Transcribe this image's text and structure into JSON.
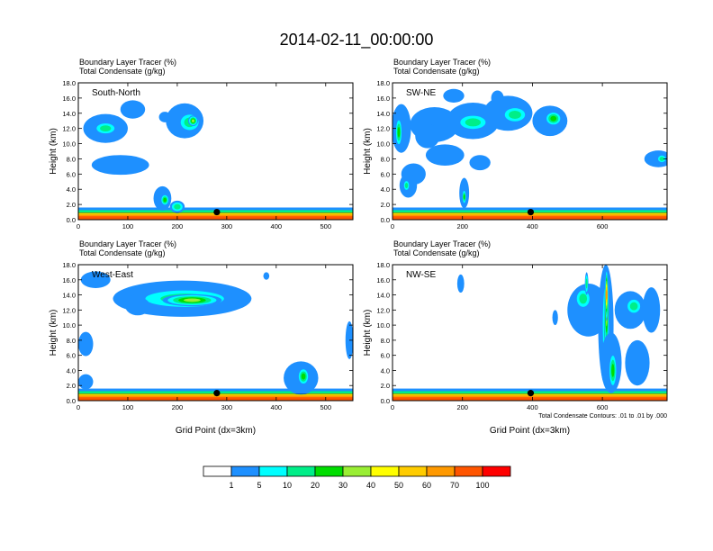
{
  "page_title": "2014-02-11_00:00:00",
  "colorbar": {
    "colors": [
      "#ffffff",
      "#1e90ff",
      "#00ffff",
      "#00ee88",
      "#00dd00",
      "#99ee33",
      "#ffff00",
      "#ffcc00",
      "#ff9900",
      "#ff5500",
      "#ff0000"
    ],
    "labels": [
      "1",
      "5",
      "10",
      "20",
      "30",
      "40",
      "50",
      "60",
      "70",
      "100"
    ]
  },
  "chart_data": [
    {
      "type": "heatmap",
      "name": "south-north",
      "label": "South-North",
      "title_lines": [
        "Boundary Layer Tracer   (%)",
        "Total Condensate   (g/kg)"
      ],
      "ylabel": "Height (km)",
      "xlabel": "",
      "xlim": [
        0,
        555
      ],
      "ylim": [
        0,
        18
      ],
      "xticks": [
        0,
        100,
        200,
        300,
        400,
        500
      ],
      "xtick_labels": [
        "0",
        "100",
        "200",
        "300",
        "400",
        "500"
      ],
      "yticks": [
        0,
        2,
        4,
        6,
        8,
        10,
        12,
        14,
        16,
        18
      ],
      "ytick_labels": [
        "0.0",
        "2.0",
        "4.0",
        "6.0",
        "8.0",
        "10.0",
        "12.0",
        "14.0",
        "16.0",
        "18.0"
      ],
      "marker": {
        "x": 280,
        "y": 1.0
      },
      "features": [
        {
          "x": 55,
          "y": 12.0,
          "rx": 45,
          "ry": 1.9,
          "level": 1
        },
        {
          "x": 55,
          "y": 12.0,
          "rx": 25,
          "ry": 0.9,
          "level": 3
        },
        {
          "x": 110,
          "y": 14.5,
          "rx": 25,
          "ry": 1.2,
          "level": 1
        },
        {
          "x": 175,
          "y": 13.5,
          "rx": 12,
          "ry": 0.7,
          "level": 1
        },
        {
          "x": 215,
          "y": 13.0,
          "rx": 38,
          "ry": 2.3,
          "level": 1
        },
        {
          "x": 225,
          "y": 12.8,
          "rx": 25,
          "ry": 1.4,
          "level": 3
        },
        {
          "x": 232,
          "y": 13.0,
          "rx": 10,
          "ry": 0.7,
          "level": 5
        },
        {
          "x": 85,
          "y": 7.2,
          "rx": 58,
          "ry": 1.3,
          "level": 1
        },
        {
          "x": 170,
          "y": 2.8,
          "rx": 18,
          "ry": 1.6,
          "level": 1
        },
        {
          "x": 175,
          "y": 2.6,
          "rx": 9,
          "ry": 0.8,
          "level": 4
        },
        {
          "x": 200,
          "y": 1.7,
          "rx": 15,
          "ry": 0.8,
          "level": 3
        }
      ]
    },
    {
      "type": "heatmap",
      "name": "sw-ne",
      "label": "SW-NE",
      "title_lines": [
        "Boundary Layer Tracer   (%)",
        "Total Condensate   (g/kg)"
      ],
      "ylabel": "Height (km)",
      "xlabel": "",
      "xlim": [
        0,
        785
      ],
      "ylim": [
        0,
        18
      ],
      "xticks": [
        0,
        200,
        400,
        600
      ],
      "xtick_labels": [
        "0",
        "200",
        "400",
        "600"
      ],
      "yticks": [
        0,
        2,
        4,
        6,
        8,
        10,
        12,
        14,
        16,
        18
      ],
      "ytick_labels": [
        "0.0",
        "2.0",
        "4.0",
        "6.0",
        "8.0",
        "10.0",
        "12.0",
        "14.0",
        "16.0",
        "18.0"
      ],
      "marker": {
        "x": 395,
        "y": 1.0
      },
      "features": [
        {
          "x": 25,
          "y": 12.0,
          "rx": 28,
          "ry": 3.2,
          "level": 1
        },
        {
          "x": 18,
          "y": 11.5,
          "rx": 10,
          "ry": 2.0,
          "level": 4
        },
        {
          "x": 120,
          "y": 12.5,
          "rx": 70,
          "ry": 2.3,
          "level": 1
        },
        {
          "x": 230,
          "y": 13.0,
          "rx": 75,
          "ry": 2.4,
          "level": 1
        },
        {
          "x": 230,
          "y": 12.8,
          "rx": 50,
          "ry": 1.2,
          "level": 3
        },
        {
          "x": 330,
          "y": 14.0,
          "rx": 70,
          "ry": 2.3,
          "level": 1
        },
        {
          "x": 350,
          "y": 13.8,
          "rx": 40,
          "ry": 1.2,
          "level": 3
        },
        {
          "x": 450,
          "y": 13.0,
          "rx": 50,
          "ry": 2.0,
          "level": 1
        },
        {
          "x": 460,
          "y": 13.3,
          "rx": 25,
          "ry": 1.0,
          "level": 4
        },
        {
          "x": 175,
          "y": 16.3,
          "rx": 30,
          "ry": 0.9,
          "level": 1
        },
        {
          "x": 300,
          "y": 16.0,
          "rx": 18,
          "ry": 1.0,
          "level": 1
        },
        {
          "x": 100,
          "y": 11.0,
          "rx": 35,
          "ry": 1.6,
          "level": 1
        },
        {
          "x": 150,
          "y": 8.5,
          "rx": 55,
          "ry": 1.4,
          "level": 1
        },
        {
          "x": 250,
          "y": 7.5,
          "rx": 30,
          "ry": 1.0,
          "level": 1
        },
        {
          "x": 60,
          "y": 6.0,
          "rx": 35,
          "ry": 1.4,
          "level": 1
        },
        {
          "x": 45,
          "y": 4.5,
          "rx": 25,
          "ry": 1.6,
          "level": 1
        },
        {
          "x": 40,
          "y": 4.5,
          "rx": 10,
          "ry": 0.8,
          "level": 3
        },
        {
          "x": 205,
          "y": 3.5,
          "rx": 14,
          "ry": 2.0,
          "level": 1
        },
        {
          "x": 205,
          "y": 3.0,
          "rx": 6,
          "ry": 1.0,
          "level": 4
        },
        {
          "x": 760,
          "y": 8.0,
          "rx": 40,
          "ry": 1.1,
          "level": 1
        },
        {
          "x": 770,
          "y": 8.0,
          "rx": 15,
          "ry": 0.6,
          "level": 3
        }
      ]
    },
    {
      "type": "heatmap",
      "name": "west-east",
      "label": "West-East",
      "title_lines": [
        "Boundary Layer Tracer   (%)",
        "Total Condensate   (g/kg)"
      ],
      "ylabel": "Height (km)",
      "xlabel": "Grid Point (dx=3km)",
      "xlim": [
        0,
        555
      ],
      "ylim": [
        0,
        18
      ],
      "xticks": [
        0,
        100,
        200,
        300,
        400,
        500
      ],
      "xtick_labels": [
        "0",
        "100",
        "200",
        "300",
        "400",
        "500"
      ],
      "yticks": [
        0,
        2,
        4,
        6,
        8,
        10,
        12,
        14,
        16,
        18
      ],
      "ytick_labels": [
        "0.0",
        "2.0",
        "4.0",
        "6.0",
        "8.0",
        "10.0",
        "12.0",
        "14.0",
        "16.0",
        "18.0"
      ],
      "marker": {
        "x": 280,
        "y": 1.0
      },
      "features": [
        {
          "x": 210,
          "y": 13.5,
          "rx": 140,
          "ry": 2.4,
          "level": 1
        },
        {
          "x": 215,
          "y": 13.5,
          "rx": 110,
          "ry": 1.5,
          "level": 3
        },
        {
          "x": 230,
          "y": 13.3,
          "rx": 60,
          "ry": 0.8,
          "level": 5
        },
        {
          "x": 120,
          "y": 12.5,
          "rx": 25,
          "ry": 1.2,
          "level": 1
        },
        {
          "x": 35,
          "y": 16.0,
          "rx": 30,
          "ry": 1.1,
          "level": 1
        },
        {
          "x": 15,
          "y": 7.5,
          "rx": 15,
          "ry": 1.6,
          "level": 1
        },
        {
          "x": 15,
          "y": 2.5,
          "rx": 15,
          "ry": 1.0,
          "level": 1
        },
        {
          "x": 450,
          "y": 3.0,
          "rx": 35,
          "ry": 2.2,
          "level": 1
        },
        {
          "x": 455,
          "y": 3.2,
          "rx": 12,
          "ry": 1.2,
          "level": 4
        },
        {
          "x": 548,
          "y": 8.0,
          "rx": 8,
          "ry": 2.5,
          "level": 1
        },
        {
          "x": 380,
          "y": 16.5,
          "rx": 6,
          "ry": 0.5,
          "level": 1
        }
      ]
    },
    {
      "type": "heatmap",
      "name": "nw-se",
      "label": "NW-SE",
      "title_lines": [
        "Boundary Layer Tracer   (%)",
        "Total Condensate   (g/kg)"
      ],
      "ylabel": "Height (km)",
      "xlabel": "Grid Point (dx=3km)",
      "note": "Total Condensate Contours: .01 to .01 by .000",
      "xlim": [
        0,
        785
      ],
      "ylim": [
        0,
        18
      ],
      "xticks": [
        0,
        200,
        400,
        600
      ],
      "xtick_labels": [
        "0",
        "200",
        "400",
        "600"
      ],
      "yticks": [
        0,
        2,
        4,
        6,
        8,
        10,
        12,
        14,
        16,
        18
      ],
      "ytick_labels": [
        "0.0",
        "2.0",
        "4.0",
        "6.0",
        "8.0",
        "10.0",
        "12.0",
        "14.0",
        "16.0",
        "18.0"
      ],
      "marker": {
        "x": 395,
        "y": 1.0
      },
      "features": [
        {
          "x": 560,
          "y": 12.0,
          "rx": 60,
          "ry": 3.5,
          "level": 1
        },
        {
          "x": 545,
          "y": 13.5,
          "rx": 25,
          "ry": 1.5,
          "level": 3
        },
        {
          "x": 610,
          "y": 10.0,
          "rx": 22,
          "ry": 8.0,
          "level": 1
        },
        {
          "x": 610,
          "y": 10.0,
          "rx": 12,
          "ry": 7.5,
          "level": 3
        },
        {
          "x": 612,
          "y": 12.0,
          "rx": 7,
          "ry": 5.5,
          "level": 6
        },
        {
          "x": 612,
          "y": 14.0,
          "rx": 4,
          "ry": 3.5,
          "level": 8
        },
        {
          "x": 625,
          "y": 5.0,
          "rx": 30,
          "ry": 4.0,
          "level": 1
        },
        {
          "x": 630,
          "y": 4.0,
          "rx": 12,
          "ry": 2.5,
          "level": 4
        },
        {
          "x": 680,
          "y": 12.0,
          "rx": 45,
          "ry": 2.5,
          "level": 1
        },
        {
          "x": 690,
          "y": 12.5,
          "rx": 25,
          "ry": 1.2,
          "level": 3
        },
        {
          "x": 700,
          "y": 5.0,
          "rx": 35,
          "ry": 3.0,
          "level": 1
        },
        {
          "x": 740,
          "y": 12.0,
          "rx": 25,
          "ry": 3.0,
          "level": 1
        },
        {
          "x": 195,
          "y": 15.5,
          "rx": 10,
          "ry": 1.2,
          "level": 1
        },
        {
          "x": 465,
          "y": 11.0,
          "rx": 8,
          "ry": 1.0,
          "level": 1
        },
        {
          "x": 555,
          "y": 15.5,
          "rx": 5,
          "ry": 1.5,
          "level": 3
        }
      ]
    }
  ]
}
